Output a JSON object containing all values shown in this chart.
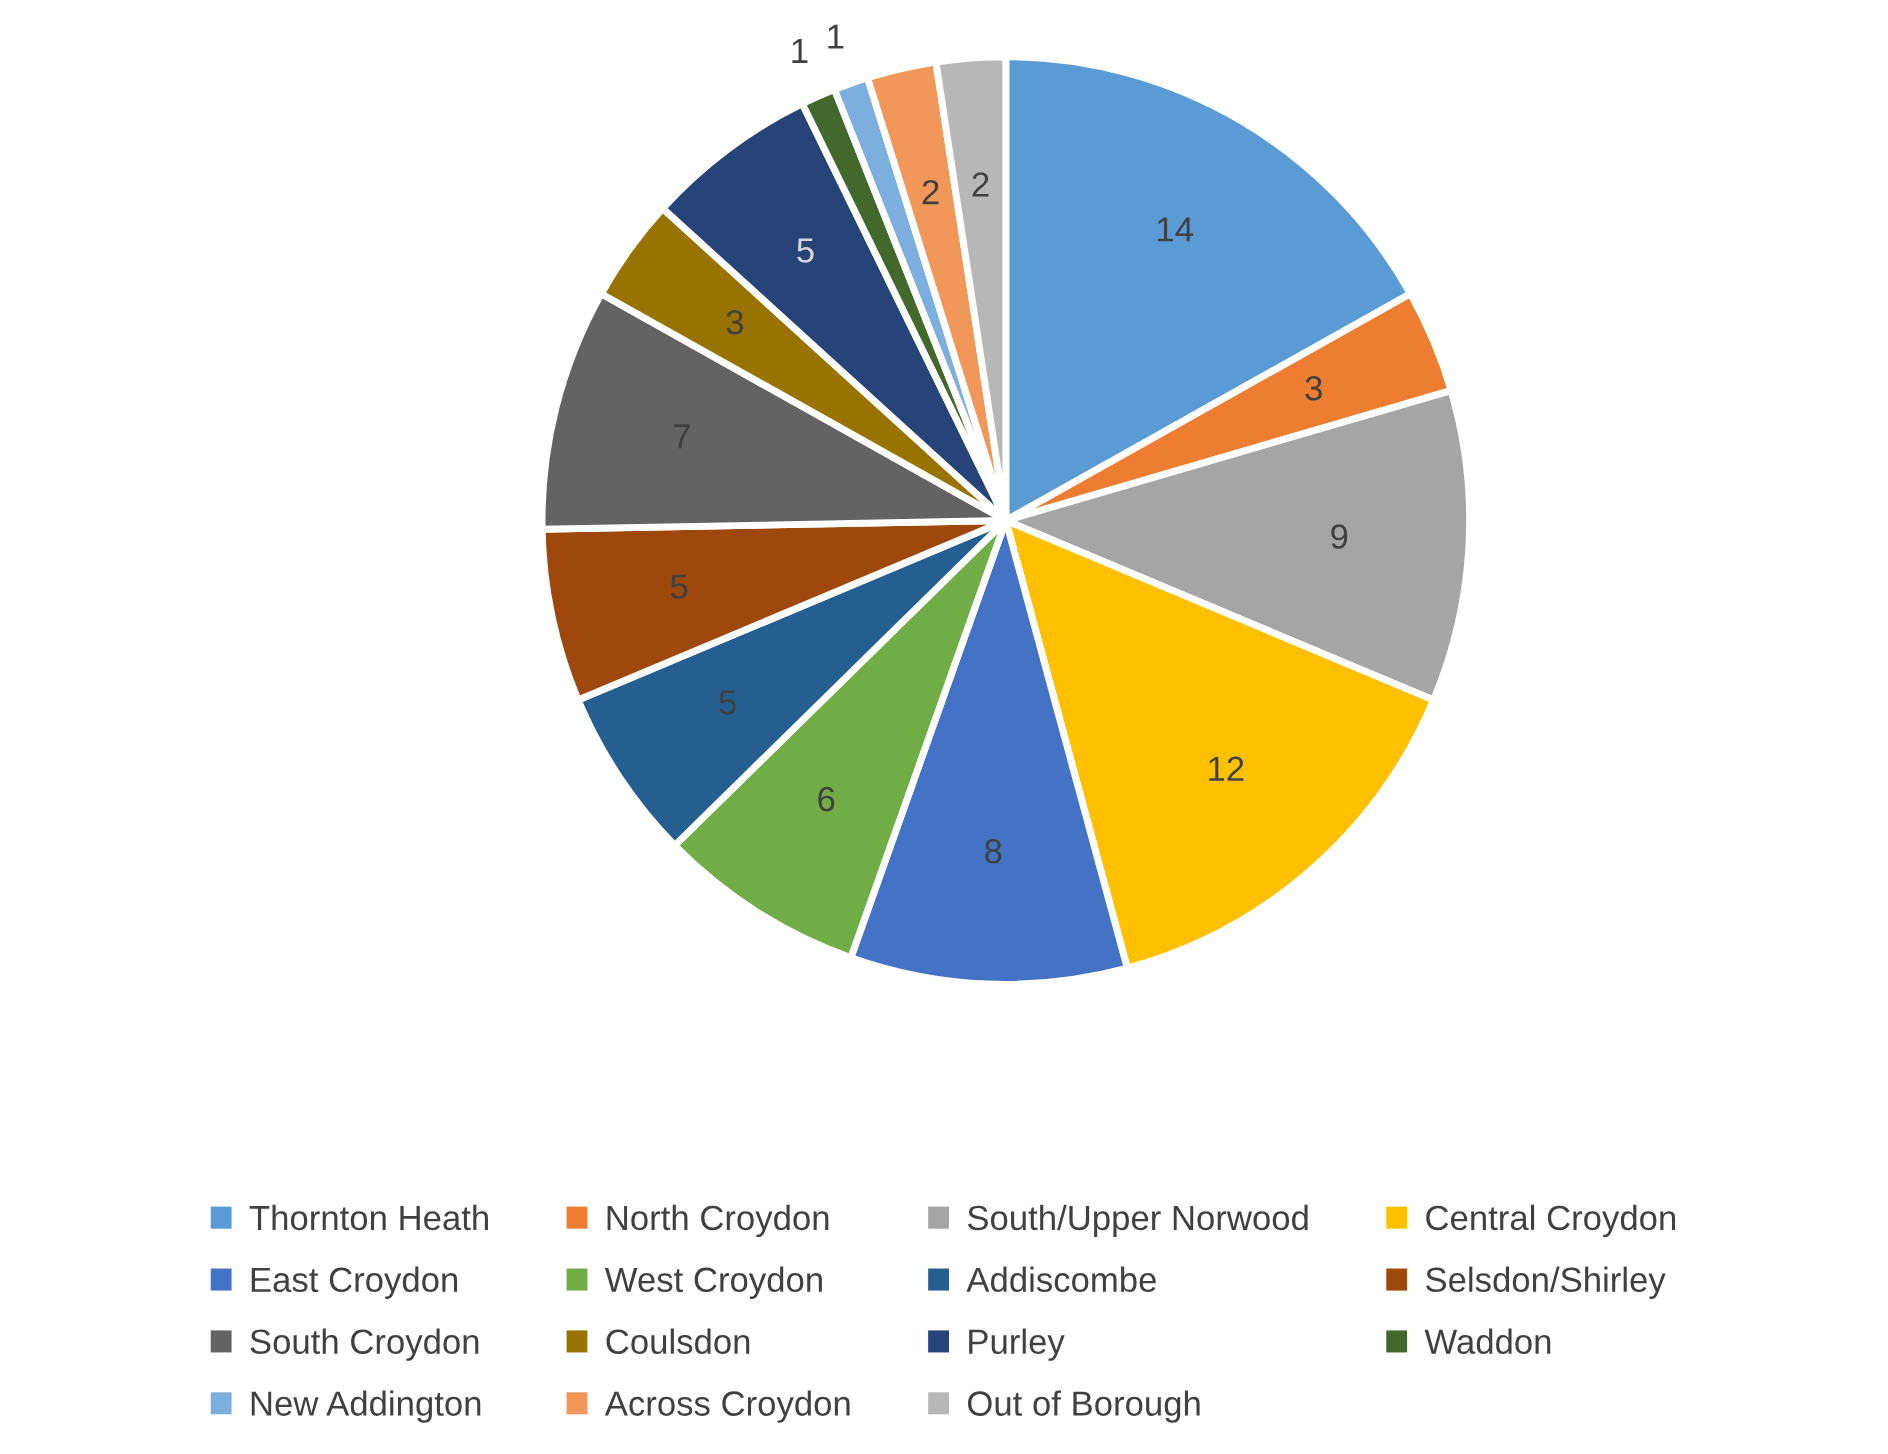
{
  "chart_data": {
    "type": "pie",
    "categories": [
      "Thornton Heath",
      "North Croydon",
      "South/Upper Norwood",
      "Central Croydon",
      "East Croydon",
      "West Croydon",
      "Addiscombe",
      "Selsdon/Shirley",
      "South Croydon",
      "Coulsdon",
      "Purley",
      "Waddon",
      "New Addington",
      "Across Croydon",
      "Out of Borough"
    ],
    "values": [
      14,
      3,
      9,
      12,
      8,
      6,
      5,
      5,
      7,
      3,
      5,
      1,
      1,
      2,
      2
    ],
    "colors": [
      "#5b9bd5",
      "#ed7d31",
      "#a5a5a5",
      "#ffc000",
      "#4472c4",
      "#70ad47",
      "#255e91",
      "#9e480e",
      "#636363",
      "#997300",
      "#264478",
      "#43682b",
      "#7cafdd",
      "#f1975a",
      "#b7b7b7"
    ],
    "data_labels": true,
    "legend": "bottom"
  }
}
